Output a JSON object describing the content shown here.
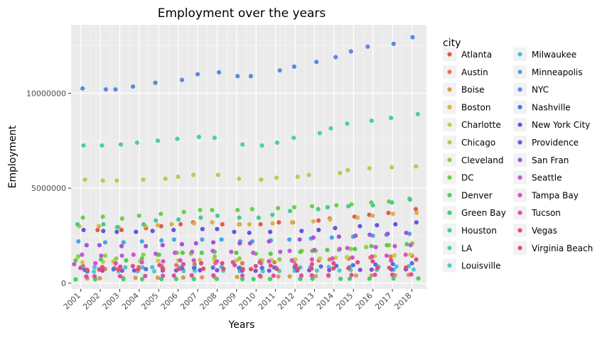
{
  "chart_data": {
    "type": "scatter",
    "title": "Employment over the years",
    "xlabel": "Years",
    "ylabel": "Employment",
    "legend_title": "city",
    "legend_position": "right",
    "grid": true,
    "x_ticks": [
      "2001",
      "2002",
      "2003",
      "2004",
      "2005",
      "2006",
      "2007",
      "2008",
      "2009",
      "2010",
      "2011",
      "2012",
      "2013",
      "2014",
      "2015",
      "2016",
      "2017",
      "2018"
    ],
    "y_ticks": [
      0,
      5000000,
      10000000
    ],
    "y_tick_labels": [
      "0",
      "5000000",
      "10000000"
    ],
    "ylim": [
      -300000,
      13600000
    ],
    "xlim": [
      2000.5,
      2018.75
    ],
    "jitter": 0.35,
    "series": [
      {
        "name": "Atlanta",
        "color": "#e05b4b",
        "values": [
          900000,
          2800000,
          2800000,
          2900000,
          3000000,
          3100000,
          3200000,
          3100000,
          3100000,
          3100000,
          3200000,
          3200000,
          3300000,
          3400000,
          3500000,
          3600000,
          3700000,
          3900000
        ]
      },
      {
        "name": "Austin",
        "color": "#e3794c",
        "values": [
          700000,
          750000,
          800000,
          850000,
          900000,
          950000,
          1000000,
          1050000,
          1050000,
          1050000,
          1100000,
          1150000,
          1200000,
          1250000,
          1300000,
          1350000,
          1400000,
          1450000
        ]
      },
      {
        "name": "Boise",
        "color": "#d99a55",
        "values": [
          250000,
          260000,
          270000,
          280000,
          290000,
          300000,
          310000,
          320000,
          330000,
          340000,
          350000,
          360000,
          370000,
          380000,
          400000,
          410000,
          420000,
          440000
        ]
      },
      {
        "name": "Boston",
        "color": "#d6b44e",
        "values": [
          3000000,
          3000000,
          2950000,
          3000000,
          3050000,
          3100000,
          3150000,
          3200000,
          3100000,
          3100000,
          3150000,
          3200000,
          3250000,
          3350000,
          3450000,
          3550000,
          3650000,
          3700000
        ]
      },
      {
        "name": "Charlotte",
        "color": "#c8cb4b",
        "values": [
          1100000,
          1120000,
          1140000,
          1160000,
          1180000,
          1200000,
          1220000,
          1240000,
          1200000,
          1200000,
          1220000,
          1260000,
          1300000,
          1340000,
          1380000,
          1420000,
          1460000,
          1500000
        ]
      },
      {
        "name": "Chicago",
        "color": "#aed056",
        "values": [
          5450000,
          5400000,
          5400000,
          5450000,
          5500000,
          5600000,
          5700000,
          5700000,
          5500000,
          5450000,
          5550000,
          5600000,
          5700000,
          5800000,
          5950000,
          6050000,
          6100000,
          6150000
        ]
      },
      {
        "name": "Cleveland",
        "color": "#8ed046",
        "values": [
          1400000,
          1450000,
          1300000,
          1500000,
          1500000,
          1600000,
          1550000,
          1400000,
          1300000,
          1200000,
          1250000,
          1700000,
          1700000,
          1750000,
          1800000,
          1900000,
          2000000,
          2100000
        ]
      },
      {
        "name": "DC",
        "color": "#6fce4a",
        "values": [
          3450000,
          3500000,
          3400000,
          3550000,
          3650000,
          3750000,
          3850000,
          3850000,
          3850000,
          3900000,
          3950000,
          4000000,
          4050000,
          4100000,
          4150000,
          4250000,
          4300000,
          4450000
        ]
      },
      {
        "name": "Denver",
        "color": "#52cc52",
        "values": [
          1200000,
          1250000,
          1200000,
          1300000,
          1500000,
          1600000,
          1600000,
          1650000,
          1600000,
          1550000,
          1550000,
          1650000,
          1700000,
          1750000,
          1800000,
          1950000,
          2000000,
          2050000
        ]
      },
      {
        "name": "Green Bay",
        "color": "#47cc6d",
        "values": [
          200000,
          205000,
          210000,
          210000,
          215000,
          220000,
          220000,
          225000,
          215000,
          215000,
          220000,
          225000,
          230000,
          230000,
          235000,
          240000,
          245000,
          250000
        ]
      },
      {
        "name": "Houston",
        "color": "#46cc8c",
        "values": [
          3100000,
          3100000,
          2950000,
          3100000,
          3300000,
          3350000,
          3450000,
          3550000,
          3450000,
          3450000,
          3600000,
          3800000,
          3900000,
          4000000,
          4050000,
          4100000,
          4250000,
          4400000
        ]
      },
      {
        "name": "LA",
        "color": "#4ccdaa",
        "values": [
          7250000,
          7250000,
          7300000,
          7400000,
          7500000,
          7600000,
          7700000,
          7650000,
          7300000,
          7250000,
          7400000,
          7650000,
          7900000,
          8150000,
          8400000,
          8550000,
          8700000,
          8900000
        ]
      },
      {
        "name": "Louisville",
        "color": "#4fcbcb",
        "values": [
          600000,
          610000,
          620000,
          625000,
          630000,
          640000,
          650000,
          655000,
          630000,
          630000,
          640000,
          650000,
          660000,
          670000,
          690000,
          700000,
          710000,
          720000
        ]
      },
      {
        "name": "Milwaukee",
        "color": "#4ebde0",
        "values": [
          850000,
          840000,
          830000,
          830000,
          840000,
          840000,
          850000,
          850000,
          820000,
          810000,
          820000,
          830000,
          840000,
          850000,
          860000,
          870000,
          880000,
          890000
        ]
      },
      {
        "name": "Minneapolis",
        "color": "#4aa6e2",
        "values": [
          2200000,
          2150000,
          2150000,
          2200000,
          2250000,
          2300000,
          2300000,
          2300000,
          2200000,
          2200000,
          2250000,
          2300000,
          2350000,
          2400000,
          2450000,
          2500000,
          2550000,
          2600000
        ]
      },
      {
        "name": "NYC",
        "color": "#5a8ae0",
        "values": [
          10250000,
          10200000,
          10200000,
          10350000,
          10550000,
          10700000,
          11000000,
          11100000,
          10900000,
          10900000,
          11200000,
          11400000,
          11650000,
          11900000,
          12200000,
          12450000,
          12600000,
          12950000
        ]
      },
      {
        "name": "Nashville",
        "color": "#5571de",
        "values": [
          700000,
          720000,
          730000,
          740000,
          760000,
          780000,
          800000,
          820000,
          800000,
          800000,
          820000,
          850000,
          880000,
          910000,
          950000,
          980000,
          1010000,
          1050000
        ]
      },
      {
        "name": "New York City",
        "color": "#6455db",
        "values": [
          2800000,
          2750000,
          2700000,
          2700000,
          2750000,
          2800000,
          2850000,
          2850000,
          2700000,
          2650000,
          2700000,
          2750000,
          2800000,
          2900000,
          3000000,
          3050000,
          3100000,
          3200000
        ]
      },
      {
        "name": "Providence",
        "color": "#8450da",
        "values": [
          650000,
          660000,
          660000,
          670000,
          670000,
          670000,
          680000,
          680000,
          660000,
          650000,
          660000,
          670000,
          680000,
          690000,
          700000,
          710000,
          720000,
          730000
        ]
      },
      {
        "name": "San Fran",
        "color": "#a453db",
        "values": [
          2000000,
          2000000,
          1950000,
          1950000,
          2000000,
          2050000,
          2100000,
          2150000,
          2100000,
          2100000,
          2200000,
          2300000,
          2400000,
          2450000,
          2500000,
          2550000,
          2600000,
          2650000
        ]
      },
      {
        "name": "Seattle",
        "color": "#c457d8",
        "values": [
          1500000,
          1450000,
          1450000,
          1500000,
          1550000,
          1600000,
          1650000,
          1700000,
          1650000,
          1600000,
          1650000,
          1700000,
          1750000,
          1800000,
          1850000,
          1900000,
          1950000,
          2000000
        ]
      },
      {
        "name": "Tampa Bay",
        "color": "#db4fc5",
        "values": [
          1000000,
          1050000,
          1050000,
          1100000,
          1150000,
          1200000,
          1200000,
          1150000,
          1100000,
          1100000,
          1150000,
          1200000,
          1250000,
          1300000,
          1350000,
          1400000,
          1450000,
          1500000
        ]
      },
      {
        "name": "Tucson",
        "color": "#dd4ea6",
        "values": [
          350000,
          360000,
          370000,
          380000,
          390000,
          400000,
          410000,
          410000,
          400000,
          390000,
          395000,
          400000,
          410000,
          420000,
          430000,
          440000,
          450000,
          460000
        ]
      },
      {
        "name": "Vegas",
        "color": "#e14d84",
        "values": [
          800000,
          850000,
          870000,
          900000,
          950000,
          1000000,
          1050000,
          1050000,
          950000,
          900000,
          920000,
          950000,
          1000000,
          1050000,
          1100000,
          1150000,
          1200000,
          1250000
        ]
      },
      {
        "name": "Virginia Beach",
        "color": "#e0506a",
        "values": [
          700000,
          710000,
          720000,
          730000,
          740000,
          750000,
          760000,
          760000,
          740000,
          740000,
          750000,
          760000,
          770000,
          780000,
          790000,
          800000,
          810000,
          820000
        ]
      }
    ]
  }
}
